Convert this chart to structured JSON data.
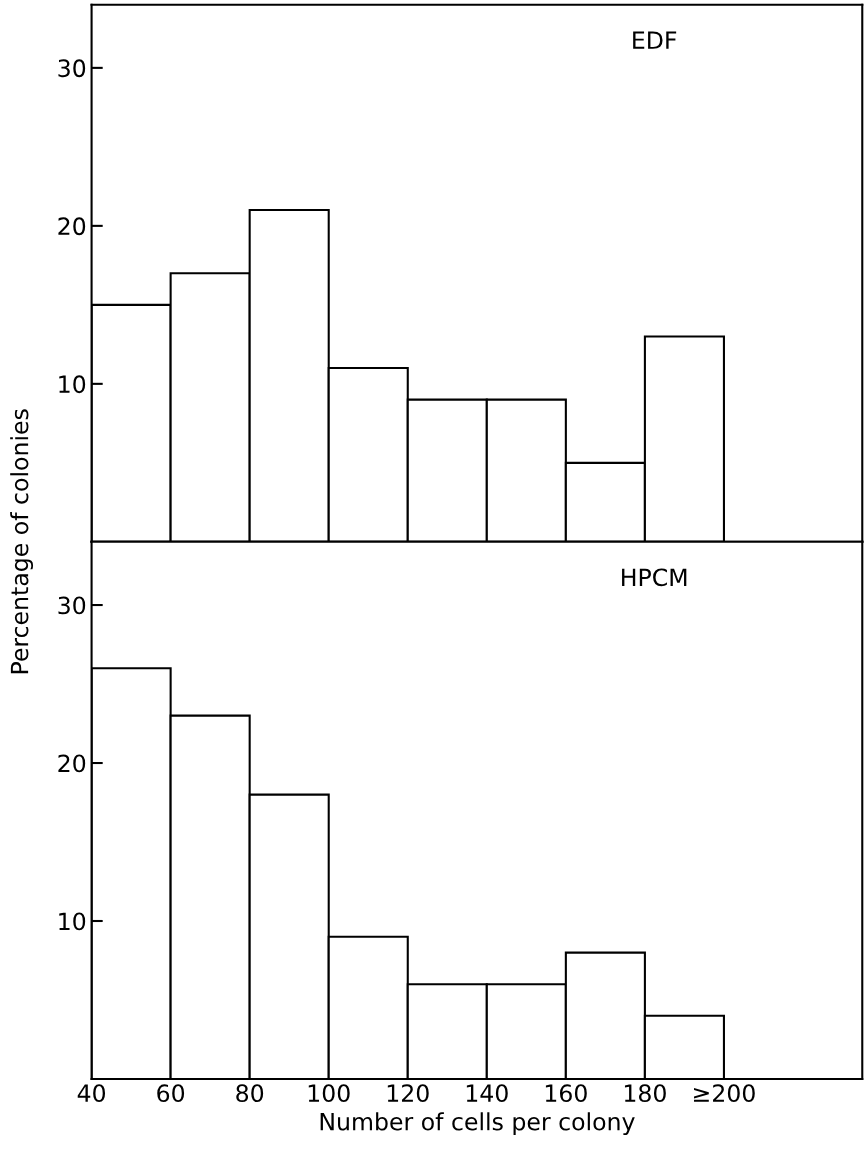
{
  "chart_data": [
    {
      "type": "histogram",
      "bins": [
        40,
        60,
        80,
        100,
        120,
        140,
        160,
        180,
        200
      ],
      "values": [
        15,
        17,
        21,
        11,
        9,
        9,
        5,
        13
      ],
      "color": "#ffffff",
      "xlim": [
        40,
        235
      ],
      "ylim": [
        0,
        34
      ],
      "yticks": [
        10,
        20,
        30
      ],
      "tick_labels": "y",
      "ylabel": "Percentage of colonies",
      "annotations": [
        "EDF"
      ],
      "grid": false,
      "legend": false
    },
    {
      "type": "histogram",
      "bins": [
        40,
        60,
        80,
        100,
        120,
        140,
        160,
        180,
        200
      ],
      "values": [
        26,
        23,
        18,
        9,
        6,
        6,
        8,
        4
      ],
      "color": "#ffffff",
      "xlim": [
        40,
        235
      ],
      "xticks": [
        40,
        60,
        80,
        100,
        120,
        140,
        160,
        180,
        {
          "value": 200,
          "label": "≥200"
        }
      ],
      "ylim": [
        0,
        34
      ],
      "yticks": [
        10,
        20,
        30
      ],
      "xlabel": "Number of cells per colony",
      "annotations": [
        "HPCM"
      ],
      "grid": false,
      "legend": false
    }
  ]
}
